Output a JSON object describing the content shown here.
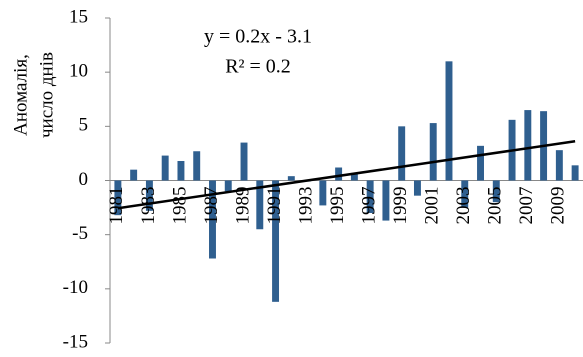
{
  "chart_data": {
    "type": "bar",
    "y_label": [
      "Аномалія,",
      "число днів"
    ],
    "annotations": [
      "y = 0.2x - 3.1",
      "R² = 0.2"
    ],
    "categories": [
      "1981",
      null,
      "1983",
      null,
      "1985",
      null,
      "1987",
      null,
      "1989",
      null,
      "1991",
      null,
      "1993",
      null,
      "1995",
      null,
      "1997",
      null,
      "1999",
      null,
      "2001",
      null,
      "2003",
      null,
      "2005",
      null,
      "2007",
      null,
      "2009",
      null
    ],
    "values": [
      -3.2,
      1.0,
      -2.8,
      2.3,
      1.8,
      2.7,
      -7.2,
      -1.0,
      3.5,
      -4.5,
      -11.2,
      0.4,
      -0.1,
      -2.3,
      1.2,
      0.7,
      -3.0,
      -3.7,
      5.0,
      -1.4,
      5.3,
      11.0,
      -2.5,
      3.2,
      -2.0,
      5.6,
      6.5,
      6.4,
      2.8,
      1.4
    ],
    "color": "#2f5f8f",
    "trend_color": "#000000",
    "ylim": [
      -15,
      15
    ],
    "yticks": [
      -15,
      -10,
      -5,
      0,
      5,
      10,
      15
    ],
    "grid": false
  }
}
